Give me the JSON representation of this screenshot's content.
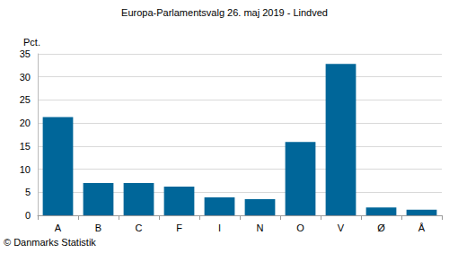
{
  "chart_data": {
    "type": "bar",
    "title": "Europa-Parlamentsvalg 26. maj 2019 - Lindved",
    "y_label": "Pct.",
    "source": "© Danmarks Statistik",
    "categories": [
      "A",
      "B",
      "C",
      "F",
      "I",
      "N",
      "O",
      "V",
      "Ø",
      "Å"
    ],
    "values": [
      21.3,
      7.0,
      7.0,
      6.2,
      3.9,
      3.5,
      15.9,
      32.8,
      1.7,
      1.2
    ],
    "color": "#006699",
    "ylim": [
      0,
      35
    ],
    "yticks": [
      0,
      5,
      10,
      15,
      20,
      25,
      30,
      35
    ],
    "grid": true
  }
}
